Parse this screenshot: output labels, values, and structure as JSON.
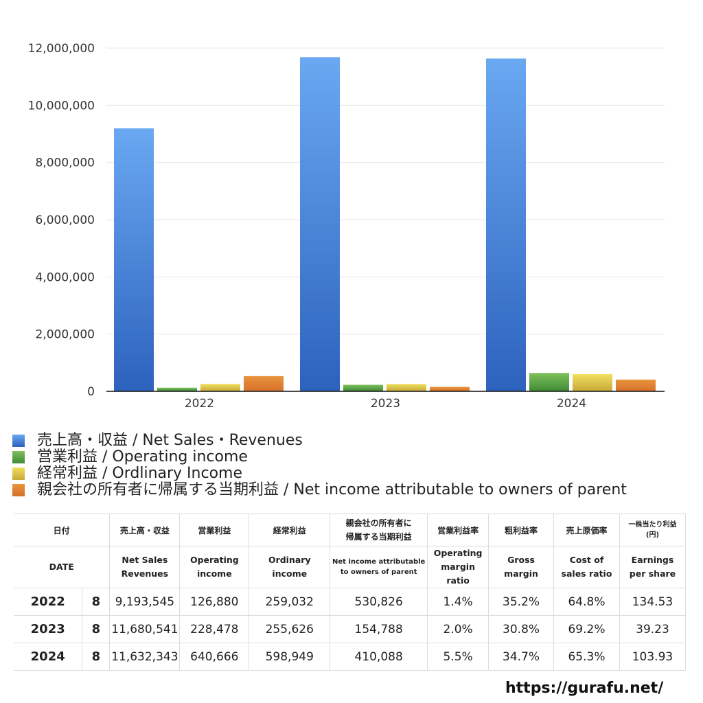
{
  "chart_data": {
    "type": "bar",
    "title": "",
    "xlabel": "",
    "ylabel": "",
    "ylim": [
      0,
      12000000
    ],
    "yticks": [
      0,
      2000000,
      4000000,
      6000000,
      8000000,
      10000000,
      12000000
    ],
    "ytick_labels": [
      "0",
      "2,000,000",
      "4,000,000",
      "6,000,000",
      "8,000,000",
      "10,000,000",
      "12,000,000"
    ],
    "categories": [
      "2022",
      "2023",
      "2024"
    ],
    "grid": true,
    "legend_position": "bottom",
    "series": [
      {
        "name": "売上高・収益 / Net Sales・Revenues",
        "color_top": "#6aa8f2",
        "color_bottom": "#2d62bd",
        "values": [
          9193545,
          11680541,
          11632343
        ]
      },
      {
        "name": "営業利益 / Operating income",
        "color_top": "#7fc15c",
        "color_bottom": "#3e8a35",
        "values": [
          126880,
          228478,
          640666
        ]
      },
      {
        "name": "経常利益 / Ordlinary Income",
        "color_top": "#f0df5e",
        "color_bottom": "#c8a83a",
        "values": [
          259032,
          255626,
          598949
        ]
      },
      {
        "name": "親会社の所有者に帰属する当期利益 / Net income attributable to owners of parent",
        "color_top": "#e8943c",
        "color_bottom": "#d6702c",
        "values": [
          530826,
          154788,
          410088
        ]
      }
    ]
  },
  "table": {
    "header_jp": [
      "日付",
      "売上高・収益",
      "営業利益",
      "経常利益",
      "親会社の所有者に帰属する当期利益",
      "営業利益率",
      "粗利益率",
      "売上原価率",
      "一株当たり利益(円)"
    ],
    "header_jp_lines": {
      "net_income_line1": "親会社の所有者に",
      "net_income_line2": "帰属する当期利益",
      "eps_line1": "一株当たり利益",
      "eps_line2": "(円)"
    },
    "header_en": {
      "date": "DATE",
      "net_sales_1": "Net Sales",
      "net_sales_2": "Revenues",
      "operating_1": "Operating",
      "operating_2": "income",
      "ordinary_1": "Ordinary",
      "ordinary_2": "income",
      "net_income_1": "Net income attributable",
      "net_income_2": "to owners of parent",
      "op_margin_1": "Operating",
      "op_margin_2": "margin",
      "op_margin_3": "ratio",
      "gross_1": "Gross",
      "gross_2": "margin",
      "cost_1": "Cost of",
      "cost_2": "sales ratio",
      "eps_1": "Earnings",
      "eps_2": "per share"
    },
    "rows": [
      {
        "year": "2022",
        "month": "8",
        "net_sales": "9,193,545",
        "operating_income": "126,880",
        "ordinary_income": "259,032",
        "net_income": "530,826",
        "operating_margin": "1.4%",
        "gross_margin": "35.2%",
        "cost_ratio": "64.8%",
        "eps": "134.53"
      },
      {
        "year": "2023",
        "month": "8",
        "net_sales": "11,680,541",
        "operating_income": "228,478",
        "ordinary_income": "255,626",
        "net_income": "154,788",
        "operating_margin": "2.0%",
        "gross_margin": "30.8%",
        "cost_ratio": "69.2%",
        "eps": "39.23"
      },
      {
        "year": "2024",
        "month": "8",
        "net_sales": "11,632,343",
        "operating_income": "640,666",
        "ordinary_income": "598,949",
        "net_income": "410,088",
        "operating_margin": "5.5%",
        "gross_margin": "34.7%",
        "cost_ratio": "65.3%",
        "eps": "103.93"
      }
    ]
  },
  "footer": {
    "url": "https://gurafu.net/"
  }
}
